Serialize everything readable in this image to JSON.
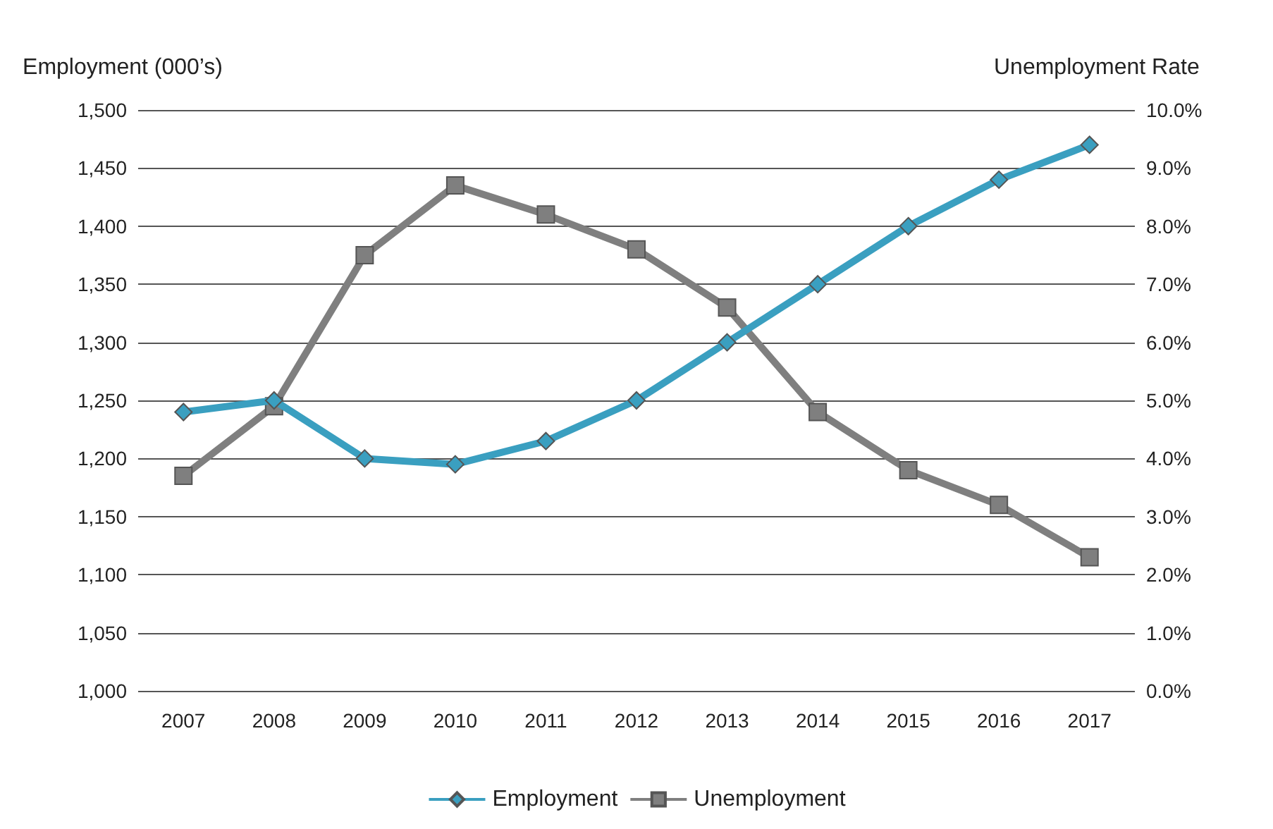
{
  "chart_data": {
    "type": "line",
    "ylabel": "Employment (000’s)",
    "y2label": "Unemployment Rate",
    "categories": [
      "2007",
      "2008",
      "2009",
      "2010",
      "2011",
      "2012",
      "2013",
      "2014",
      "2015",
      "2016",
      "2017"
    ],
    "series": [
      {
        "name": "Employment",
        "color": "#3a9fc0",
        "marker": "diamond",
        "values": [
          1240,
          1250,
          1200,
          1195,
          1215,
          1250,
          1300,
          1350,
          1400,
          1440,
          1470
        ]
      },
      {
        "name": "Unemployment",
        "color": "#7f7f7f",
        "marker": "square",
        "axis": "y2",
        "values": [
          3.7,
          4.9,
          7.5,
          8.7,
          8.2,
          7.6,
          6.6,
          4.8,
          3.8,
          3.2,
          2.3
        ]
      }
    ],
    "ylim": [
      1000,
      1500
    ],
    "yticks": [
      {
        "value": 1000,
        "label": "1,000"
      },
      {
        "value": 1050,
        "label": "1,050"
      },
      {
        "value": 1100,
        "label": "1,100"
      },
      {
        "value": 1150,
        "label": "1,150"
      },
      {
        "value": 1200,
        "label": "1,200"
      },
      {
        "value": 1250,
        "label": "1,250"
      },
      {
        "value": 1300,
        "label": "1,300"
      },
      {
        "value": 1350,
        "label": "1,350"
      },
      {
        "value": 1400,
        "label": "1,400"
      },
      {
        "value": 1450,
        "label": "1,450"
      },
      {
        "value": 1500,
        "label": "1,500"
      }
    ],
    "y2lim": [
      0,
      10
    ],
    "y2ticks": [
      {
        "value": 0,
        "label": "0.0%"
      },
      {
        "value": 1,
        "label": "1.0%"
      },
      {
        "value": 2,
        "label": "2.0%"
      },
      {
        "value": 3,
        "label": "3.0%"
      },
      {
        "value": 4,
        "label": "4.0%"
      },
      {
        "value": 5,
        "label": "5.0%"
      },
      {
        "value": 6,
        "label": "6.0%"
      },
      {
        "value": 7,
        "label": "7.0%"
      },
      {
        "value": 8,
        "label": "8.0%"
      },
      {
        "value": 9,
        "label": "9.0%"
      },
      {
        "value": 10,
        "label": "10.0%"
      }
    ],
    "grid": "y",
    "legend": "bottom",
    "line_style": "solid"
  }
}
